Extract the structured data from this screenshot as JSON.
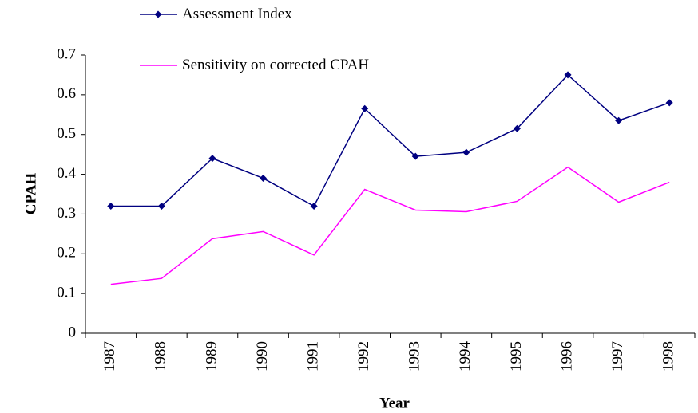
{
  "chart_data": {
    "type": "line",
    "x_label": "Year",
    "y_label": "CPAH",
    "categories": [
      "1987",
      "1988",
      "1989",
      "1990",
      "1991",
      "1992",
      "1993",
      "1994",
      "1995",
      "1996",
      "1997",
      "1998"
    ],
    "series": [
      {
        "name": "Assessment Index",
        "color": "#000080",
        "marker": "diamond",
        "values": [
          0.32,
          0.32,
          0.44,
          0.39,
          0.32,
          0.565,
          0.445,
          0.455,
          0.515,
          0.65,
          0.535,
          0.58
        ]
      },
      {
        "name": "Sensitivity on corrected CPAH",
        "color": "#ff00ff",
        "values": [
          0.123,
          0.138,
          0.238,
          0.256,
          0.197,
          0.362,
          0.31,
          0.306,
          0.332,
          0.418,
          0.33,
          0.38
        ]
      }
    ],
    "ylim": [
      0,
      0.7
    ],
    "yticks": [
      0,
      0.1,
      0.2,
      0.3,
      0.4,
      0.5,
      0.6,
      0.7
    ],
    "grid": false
  }
}
